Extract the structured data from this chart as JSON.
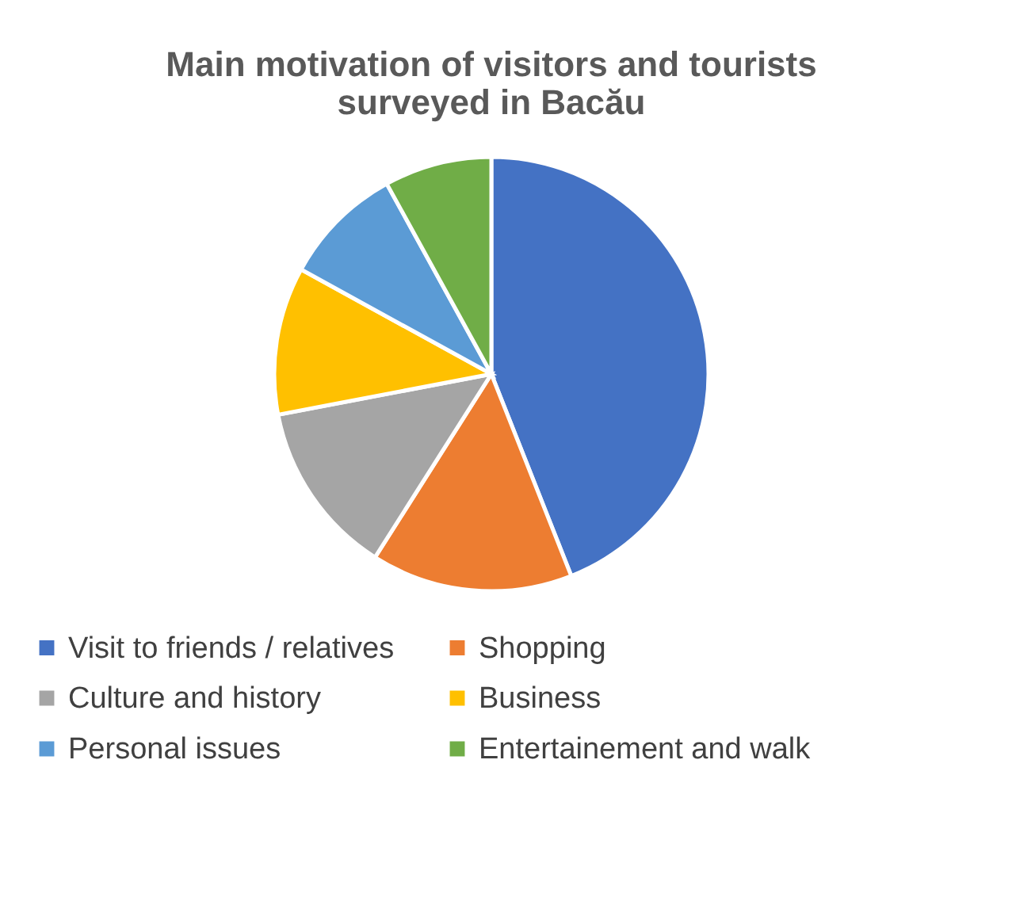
{
  "chart_data": {
    "type": "pie",
    "title": "Main motivation of visitors and tourists surveyed in Bacău",
    "categories": [
      "Visit to friends / relatives",
      "Shopping",
      "Culture and history",
      "Business",
      "Personal issues",
      "Entertainement and walk"
    ],
    "values": [
      44,
      15,
      13,
      11,
      9,
      8
    ],
    "colors": [
      "#4472c4",
      "#ed7d31",
      "#a5a5a5",
      "#ffc000",
      "#5b9bd5",
      "#70ad47"
    ],
    "legend": "bottom"
  }
}
